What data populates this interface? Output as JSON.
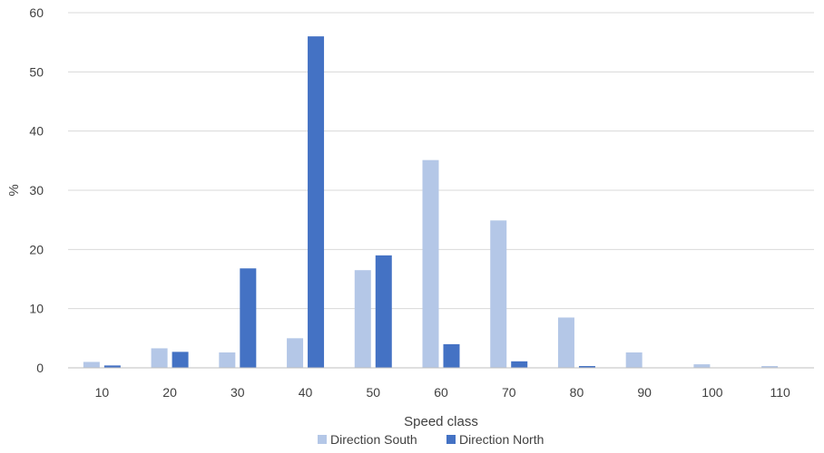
{
  "chart_data": {
    "type": "bar",
    "xlabel": "Speed class",
    "ylabel": "%",
    "ylim": [
      0,
      60
    ],
    "yticks": [
      0,
      10,
      20,
      30,
      40,
      50,
      60
    ],
    "grid": true,
    "legend_position": "bottom",
    "categories": [
      "10",
      "20",
      "30",
      "40",
      "50",
      "60",
      "70",
      "80",
      "90",
      "100",
      "110"
    ],
    "series": [
      {
        "name": "Direction South",
        "color": "#b4c7e7",
        "values": [
          1.0,
          3.3,
          2.6,
          5.0,
          16.5,
          35.1,
          24.9,
          8.5,
          2.6,
          0.6,
          0.3
        ]
      },
      {
        "name": "Direction North",
        "color": "#4472c4",
        "values": [
          0.4,
          2.7,
          16.8,
          56.0,
          19.0,
          4.0,
          1.1,
          0.3,
          0,
          0,
          0
        ]
      }
    ]
  }
}
